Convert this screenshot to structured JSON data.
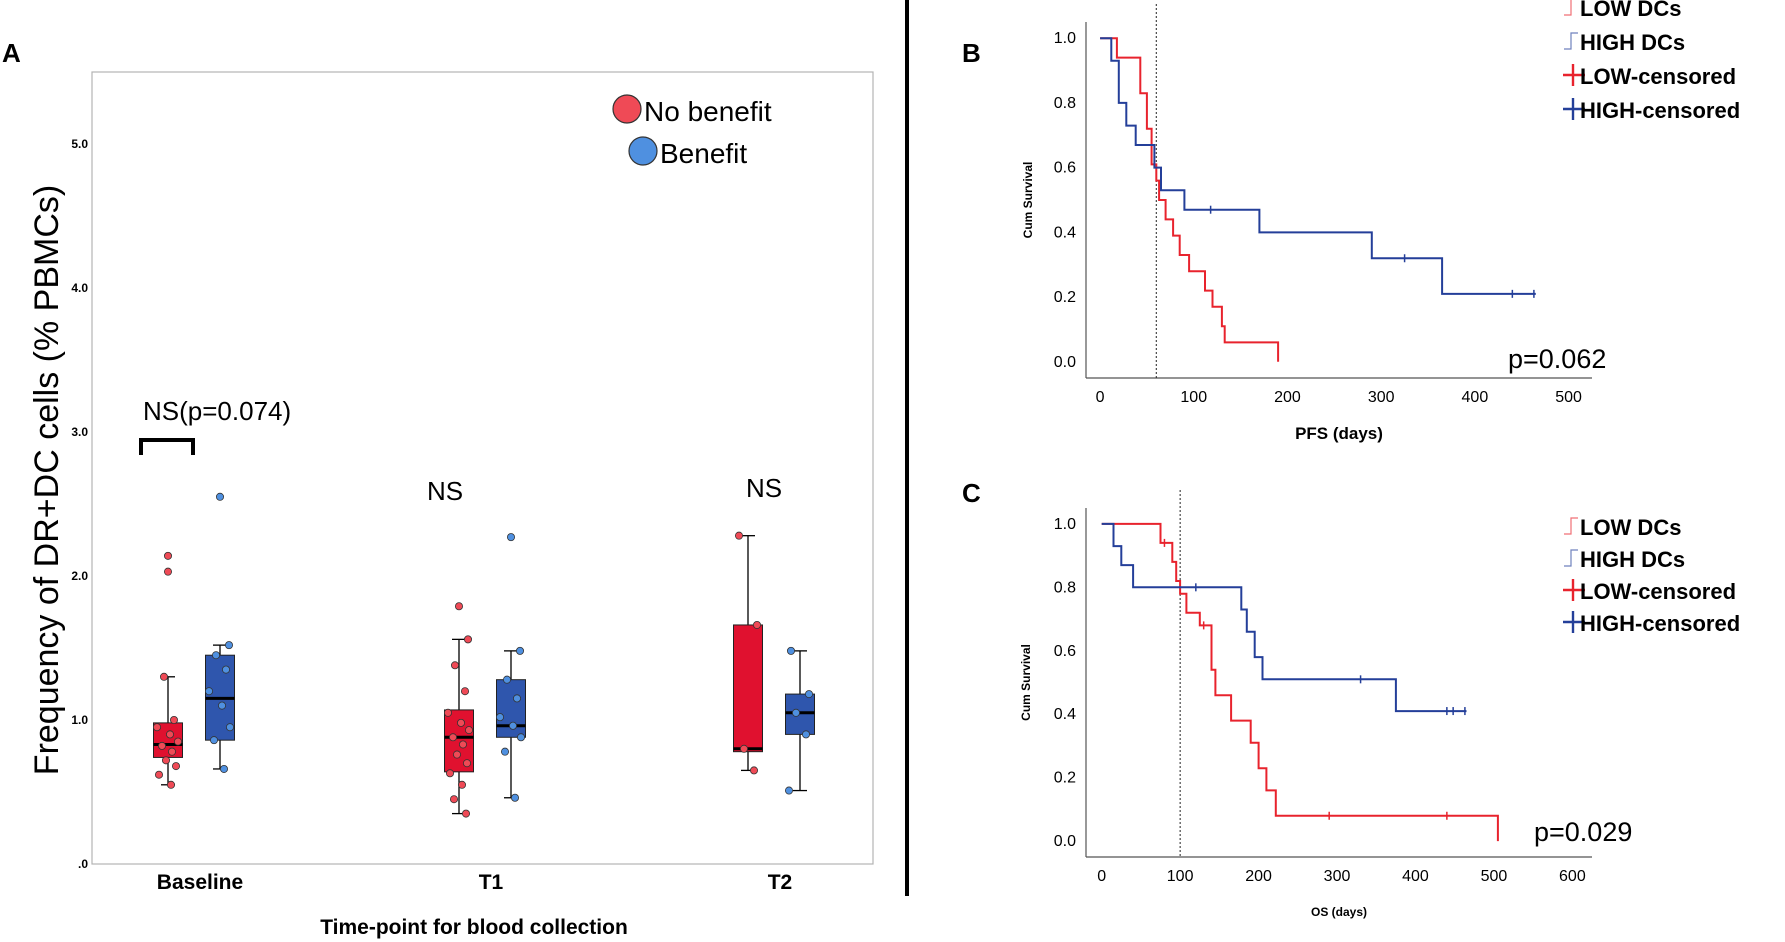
{
  "colors": {
    "no_benefit": "#e0112f",
    "no_benefit_point": "#ef4a56",
    "benefit": "#2f56ad",
    "benefit_point": "#4f90e0",
    "low": "#e8232d",
    "high": "#243f99"
  },
  "chart_data": [
    {
      "panel": "A",
      "type": "box",
      "ylabel": "Frequency of DR+DC cells  (% PBMCs)",
      "xlabel": "Time-point for blood collection",
      "ylim": [
        0,
        5.5
      ],
      "yticks": [
        0,
        1.0,
        2.0,
        3.0,
        4.0,
        5.0
      ],
      "ytick_labels": [
        ".0",
        "1.0",
        "2.0",
        "3.0",
        "4.0",
        "5.0"
      ],
      "categories": [
        "Baseline",
        "T1",
        "T2"
      ],
      "legend": [
        "No benefit",
        "Benefit"
      ],
      "annotations": [
        "NS(p=0.074)",
        "NS",
        "NS"
      ],
      "series": [
        {
          "name": "No benefit",
          "boxes": [
            {
              "category": "Baseline",
              "min": 0.55,
              "q1": 0.74,
              "median": 0.83,
              "q3": 0.98,
              "max": 1.3,
              "points": [
                2.14,
                2.03,
                1.3,
                1.0,
                0.95,
                0.9,
                0.85,
                0.82,
                0.78,
                0.72,
                0.68,
                0.62,
                0.55
              ]
            },
            {
              "category": "T1",
              "min": 0.35,
              "q1": 0.64,
              "median": 0.88,
              "q3": 1.07,
              "max": 1.56,
              "points": [
                1.79,
                1.56,
                1.38,
                1.2,
                1.05,
                0.98,
                0.93,
                0.88,
                0.83,
                0.76,
                0.7,
                0.63,
                0.55,
                0.45,
                0.35
              ]
            },
            {
              "category": "T2",
              "min": 0.65,
              "q1": 0.78,
              "median": 0.8,
              "q3": 1.66,
              "max": 2.28,
              "points": [
                2.28,
                1.66,
                0.8,
                0.65
              ]
            }
          ]
        },
        {
          "name": "Benefit",
          "boxes": [
            {
              "category": "Baseline",
              "min": 0.66,
              "q1": 0.86,
              "median": 1.15,
              "q3": 1.45,
              "max": 1.52,
              "points": [
                2.55,
                1.52,
                1.45,
                1.35,
                1.2,
                1.1,
                0.95,
                0.86,
                0.66
              ]
            },
            {
              "category": "T1",
              "min": 0.46,
              "q1": 0.88,
              "median": 0.96,
              "q3": 1.28,
              "max": 1.48,
              "points": [
                2.27,
                1.48,
                1.28,
                1.15,
                1.02,
                0.96,
                0.88,
                0.78,
                0.46
              ]
            },
            {
              "category": "T2",
              "min": 0.51,
              "q1": 0.9,
              "median": 1.05,
              "q3": 1.18,
              "max": 1.48,
              "points": [
                1.48,
                1.18,
                1.05,
                0.9,
                0.51
              ]
            }
          ]
        }
      ]
    },
    {
      "panel": "B",
      "type": "line",
      "xlabel": "PFS (days)",
      "ylabel": "Cum Survival",
      "xlim": [
        -15,
        525
      ],
      "ylim": [
        -0.05,
        1.05
      ],
      "xticks": [
        0,
        100,
        200,
        300,
        400,
        500
      ],
      "yticks": [
        0.0,
        0.2,
        0.4,
        0.6,
        0.8,
        1.0
      ],
      "ytick_labels": [
        "0.0",
        "0.2",
        "0.4",
        "0.6",
        "0.8",
        "1.0"
      ],
      "vline": 60,
      "pvalue": "p=0.062",
      "legend": [
        "LOW DCs",
        "HIGH DCs",
        "LOW-censored",
        "HIGH-censored"
      ],
      "series": [
        {
          "name": "LOW DCs",
          "x": [
            0,
            18,
            18,
            43,
            43,
            50,
            50,
            55,
            55,
            60,
            60,
            63,
            63,
            70,
            70,
            78,
            78,
            85,
            85,
            95,
            95,
            112,
            112,
            120,
            120,
            130,
            130,
            133,
            133,
            138,
            138,
            190,
            190
          ],
          "y": [
            1.0,
            1.0,
            0.94,
            0.94,
            0.83,
            0.83,
            0.72,
            0.72,
            0.61,
            0.61,
            0.56,
            0.56,
            0.5,
            0.5,
            0.44,
            0.44,
            0.39,
            0.39,
            0.33,
            0.33,
            0.28,
            0.28,
            0.22,
            0.22,
            0.17,
            0.17,
            0.11,
            0.11,
            0.06,
            0.06,
            0.06,
            0.06,
            0.0
          ]
        },
        {
          "name": "HIGH DCs",
          "x": [
            0,
            12,
            12,
            20,
            20,
            28,
            28,
            38,
            38,
            58,
            58,
            65,
            65,
            90,
            90,
            170,
            170,
            290,
            290,
            365,
            365,
            465
          ],
          "y": [
            1.0,
            1.0,
            0.93,
            0.93,
            0.8,
            0.8,
            0.73,
            0.73,
            0.67,
            0.67,
            0.6,
            0.6,
            0.53,
            0.53,
            0.47,
            0.47,
            0.4,
            0.4,
            0.32,
            0.32,
            0.21,
            0.21
          ]
        },
        {
          "name": "LOW-censored",
          "x": [
            60
          ],
          "y": [
            0.58
          ]
        },
        {
          "name": "HIGH-censored",
          "x": [
            118,
            325,
            440,
            463
          ],
          "y": [
            0.47,
            0.32,
            0.21,
            0.21
          ]
        }
      ]
    },
    {
      "panel": "C",
      "type": "line",
      "xlabel": "OS (days)",
      "ylabel": "Cum Survival",
      "xlim": [
        -20,
        625
      ],
      "ylim": [
        -0.05,
        1.05
      ],
      "xticks": [
        0,
        100,
        200,
        300,
        400,
        500,
        600
      ],
      "yticks": [
        0.0,
        0.2,
        0.4,
        0.6,
        0.8,
        1.0
      ],
      "ytick_labels": [
        "0.0",
        "0.2",
        "0.4",
        "0.6",
        "0.8",
        "1.0"
      ],
      "vline": 100,
      "pvalue": "p=0.029",
      "legend": [
        "LOW DCs",
        "HIGH DCs",
        "LOW-censored",
        "HIGH-censored"
      ],
      "series": [
        {
          "name": "LOW DCs",
          "x": [
            0,
            75,
            75,
            90,
            90,
            95,
            95,
            100,
            100,
            108,
            108,
            125,
            125,
            140,
            140,
            145,
            145,
            165,
            165,
            190,
            190,
            200,
            200,
            210,
            210,
            222,
            222,
            260,
            260,
            505,
            505
          ],
          "y": [
            1.0,
            1.0,
            0.94,
            0.94,
            0.88,
            0.88,
            0.82,
            0.82,
            0.78,
            0.78,
            0.72,
            0.72,
            0.68,
            0.68,
            0.54,
            0.54,
            0.46,
            0.46,
            0.38,
            0.38,
            0.31,
            0.31,
            0.23,
            0.23,
            0.16,
            0.16,
            0.08,
            0.08,
            0.08,
            0.08,
            0.0
          ]
        },
        {
          "name": "HIGH DCs",
          "x": [
            0,
            15,
            15,
            25,
            25,
            40,
            40,
            178,
            178,
            185,
            185,
            195,
            195,
            205,
            205,
            300,
            300,
            375,
            375,
            465
          ],
          "y": [
            1.0,
            1.0,
            0.93,
            0.93,
            0.87,
            0.87,
            0.8,
            0.8,
            0.73,
            0.73,
            0.66,
            0.66,
            0.58,
            0.58,
            0.51,
            0.51,
            0.51,
            0.51,
            0.41,
            0.41
          ]
        },
        {
          "name": "LOW-censored",
          "x": [
            80,
            130,
            290,
            440
          ],
          "y": [
            0.94,
            0.68,
            0.08,
            0.08
          ]
        },
        {
          "name": "HIGH-censored",
          "x": [
            120,
            330,
            440,
            448,
            463
          ],
          "y": [
            0.8,
            0.51,
            0.41,
            0.41,
            0.41
          ]
        }
      ]
    }
  ]
}
